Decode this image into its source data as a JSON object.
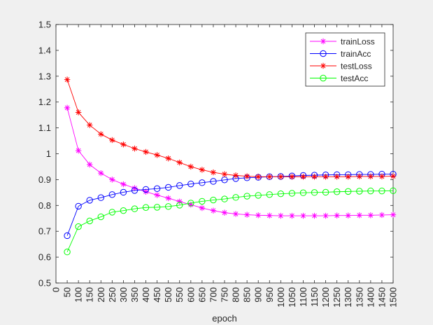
{
  "chart_data": {
    "type": "line",
    "title": "",
    "xlabel": "epoch",
    "ylabel": "",
    "xlim": [
      0,
      1500
    ],
    "ylim": [
      0.5,
      1.5
    ],
    "xticks": [
      "0",
      "50",
      "100",
      "150",
      "200",
      "250",
      "300",
      "350",
      "400",
      "450",
      "500",
      "550",
      "600",
      "650",
      "700",
      "750",
      "800",
      "850",
      "900",
      "950",
      "1000",
      "1050",
      "1100",
      "1150",
      "1200",
      "1250",
      "1300",
      "1350",
      "1400",
      "1450",
      "1500"
    ],
    "yticks": [
      "0.5",
      "0.6",
      "0.7",
      "0.8",
      "0.9",
      "1",
      "1.1",
      "1.2",
      "1.3",
      "1.4",
      "1.5"
    ],
    "legend_position": "top-right",
    "grid": false,
    "x": [
      50,
      100,
      150,
      200,
      250,
      300,
      350,
      400,
      450,
      500,
      550,
      600,
      650,
      700,
      750,
      800,
      850,
      900,
      950,
      1000,
      1050,
      1100,
      1150,
      1200,
      1250,
      1300,
      1350,
      1400,
      1450,
      1500
    ],
    "series": [
      {
        "name": "trainLoss",
        "color": "#ff00ff",
        "marker": "star",
        "values": [
          1.178,
          1.012,
          0.958,
          0.925,
          0.9,
          0.882,
          0.867,
          0.853,
          0.84,
          0.828,
          0.815,
          0.803,
          0.79,
          0.78,
          0.772,
          0.767,
          0.764,
          0.762,
          0.761,
          0.76,
          0.76,
          0.76,
          0.76,
          0.76,
          0.761,
          0.761,
          0.762,
          0.762,
          0.763,
          0.764
        ]
      },
      {
        "name": "trainAcc",
        "color": "#0000ff",
        "marker": "circle",
        "values": [
          0.683,
          0.797,
          0.82,
          0.83,
          0.842,
          0.851,
          0.858,
          0.862,
          0.865,
          0.87,
          0.877,
          0.883,
          0.888,
          0.893,
          0.899,
          0.904,
          0.907,
          0.909,
          0.911,
          0.912,
          0.914,
          0.916,
          0.917,
          0.918,
          0.919,
          0.919,
          0.92,
          0.92,
          0.921,
          0.921
        ]
      },
      {
        "name": "testLoss",
        "color": "#ff0000",
        "marker": "star",
        "values": [
          1.287,
          1.16,
          1.111,
          1.076,
          1.053,
          1.036,
          1.02,
          1.007,
          0.995,
          0.982,
          0.966,
          0.95,
          0.938,
          0.928,
          0.921,
          0.916,
          0.913,
          0.911,
          0.911,
          0.911,
          0.911,
          0.911,
          0.911,
          0.911,
          0.911,
          0.911,
          0.912,
          0.912,
          0.912,
          0.913
        ]
      },
      {
        "name": "testAcc",
        "color": "#00ff00",
        "marker": "circle",
        "values": [
          0.62,
          0.718,
          0.74,
          0.756,
          0.774,
          0.78,
          0.787,
          0.792,
          0.793,
          0.796,
          0.801,
          0.809,
          0.816,
          0.821,
          0.825,
          0.831,
          0.836,
          0.839,
          0.842,
          0.845,
          0.847,
          0.849,
          0.85,
          0.851,
          0.853,
          0.854,
          0.855,
          0.856,
          0.856,
          0.857
        ]
      }
    ]
  }
}
